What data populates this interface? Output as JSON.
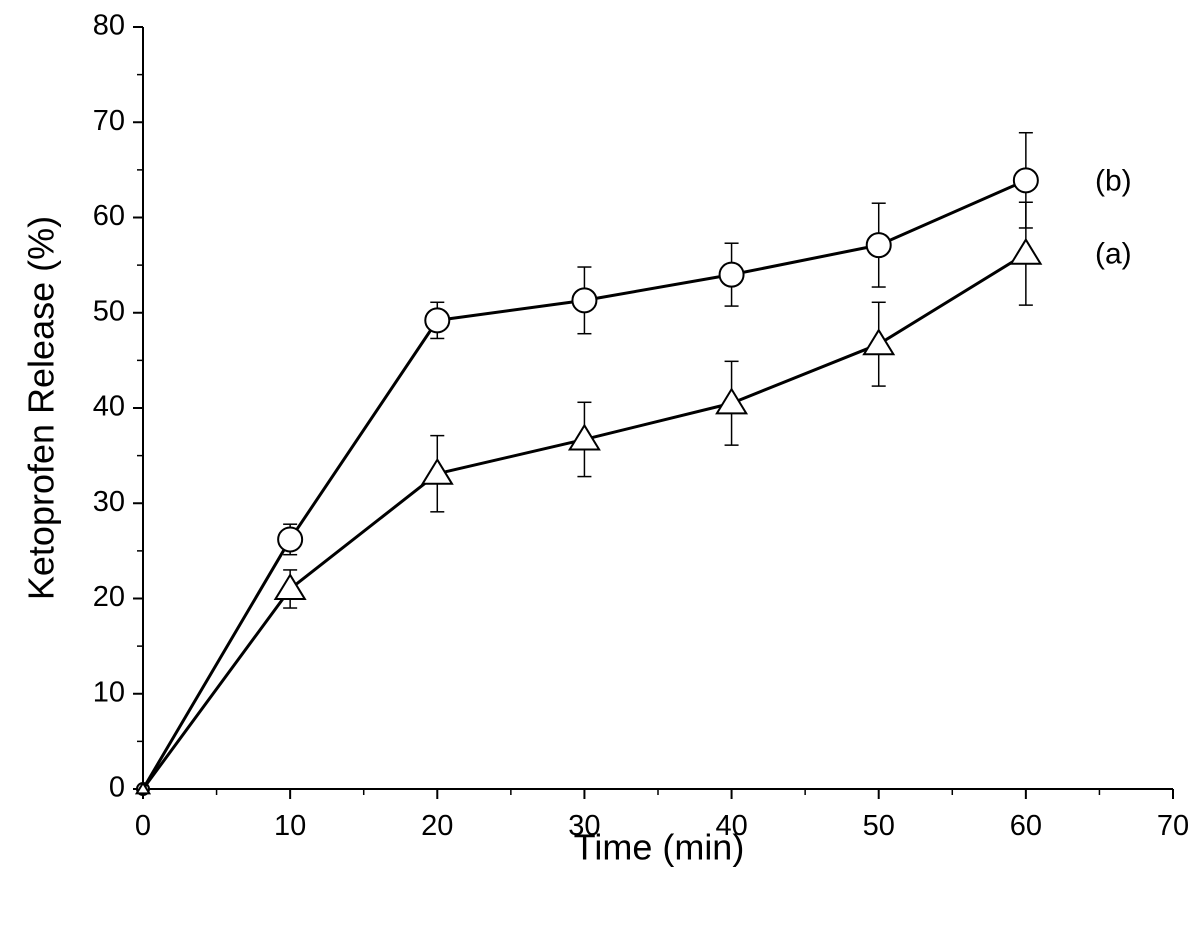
{
  "chart_data": {
    "type": "line",
    "xlabel": "Time (min)",
    "ylabel": "Ketoprofen Release (%)",
    "xlim": [
      0,
      70
    ],
    "ylim": [
      0,
      80
    ],
    "xticks": [
      0,
      10,
      20,
      30,
      40,
      50,
      60,
      70
    ],
    "yticks": [
      0,
      10,
      20,
      30,
      40,
      50,
      60,
      70,
      80
    ],
    "grid": false,
    "x": [
      0,
      10,
      20,
      30,
      40,
      50,
      60
    ],
    "series": [
      {
        "name": "(b)",
        "marker": "circle",
        "values": [
          0,
          26.2,
          49.2,
          51.3,
          54.0,
          57.1,
          63.9
        ],
        "error": [
          0,
          1.6,
          1.9,
          3.5,
          3.3,
          4.4,
          5.0
        ]
      },
      {
        "name": "(a)",
        "marker": "triangle",
        "values": [
          0,
          21.0,
          33.1,
          36.7,
          40.5,
          46.7,
          56.2
        ],
        "error": [
          0,
          2.0,
          4.0,
          3.9,
          4.4,
          4.4,
          5.4
        ]
      }
    ]
  }
}
